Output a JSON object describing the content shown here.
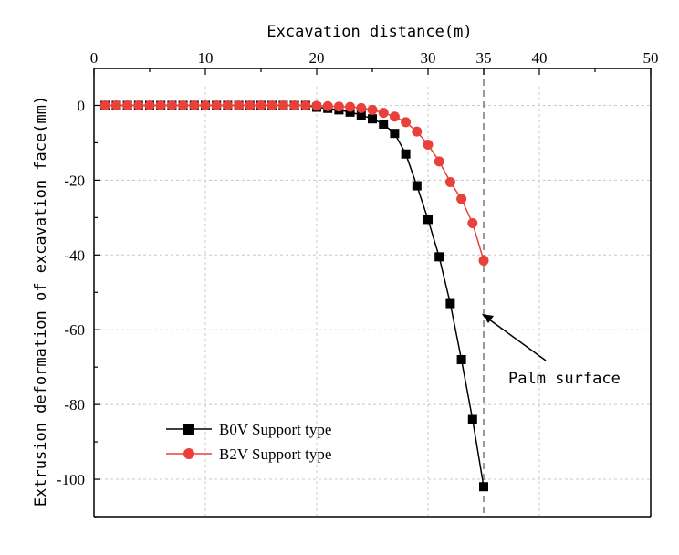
{
  "chart_data": {
    "type": "line",
    "xlabel": "Excavation distance(m)",
    "ylabel": "Extrusion deformation of excavation face(mm)",
    "xlim": [
      0,
      50
    ],
    "ylim": [
      -110,
      5
    ],
    "x_ticks": [
      0,
      10,
      20,
      30,
      35,
      40,
      50
    ],
    "y_ticks": [
      0,
      -20,
      -40,
      -60,
      -80,
      -100
    ],
    "x_axis_position": "top",
    "grid": true,
    "legend_position": "bottom-left",
    "annotation": {
      "text": "Palm surface",
      "points_to": [
        35,
        -55
      ]
    },
    "reference_line_x": 35,
    "series": [
      {
        "name": "B0V Support type",
        "color": "#000000",
        "marker": "square",
        "x": [
          1,
          2,
          3,
          4,
          5,
          6,
          7,
          8,
          9,
          10,
          11,
          12,
          13,
          14,
          15,
          16,
          17,
          18,
          19,
          20,
          21,
          22,
          23,
          24,
          25,
          26,
          27,
          28,
          29,
          30,
          31,
          32,
          33,
          34,
          35
        ],
        "y": [
          0,
          0,
          0,
          0,
          0,
          0,
          0,
          0,
          0,
          0,
          0,
          0,
          0,
          0,
          0,
          0,
          0,
          0,
          0,
          -0.5,
          -0.8,
          -1.2,
          -1.8,
          -2.6,
          -3.6,
          -5,
          -7.5,
          -13,
          -21.5,
          -30.5,
          -40.5,
          -53,
          -68,
          -84,
          -102
        ]
      },
      {
        "name": "B2V Support type",
        "color": "#e8403a",
        "marker": "circle",
        "x": [
          1,
          2,
          3,
          4,
          5,
          6,
          7,
          8,
          9,
          10,
          11,
          12,
          13,
          14,
          15,
          16,
          17,
          18,
          19,
          20,
          21,
          22,
          23,
          24,
          25,
          26,
          27,
          28,
          29,
          30,
          31,
          32,
          33,
          34,
          35
        ],
        "y": [
          0,
          0,
          0,
          0,
          0,
          0,
          0,
          0,
          0,
          0,
          0,
          0,
          0,
          0,
          0,
          0,
          0,
          0,
          0,
          -0.1,
          -0.2,
          -0.3,
          -0.4,
          -0.7,
          -1.2,
          -2,
          -3,
          -4.5,
          -7,
          -10.5,
          -15,
          -20.5,
          -25,
          -31.5,
          -41.5
        ]
      }
    ]
  }
}
